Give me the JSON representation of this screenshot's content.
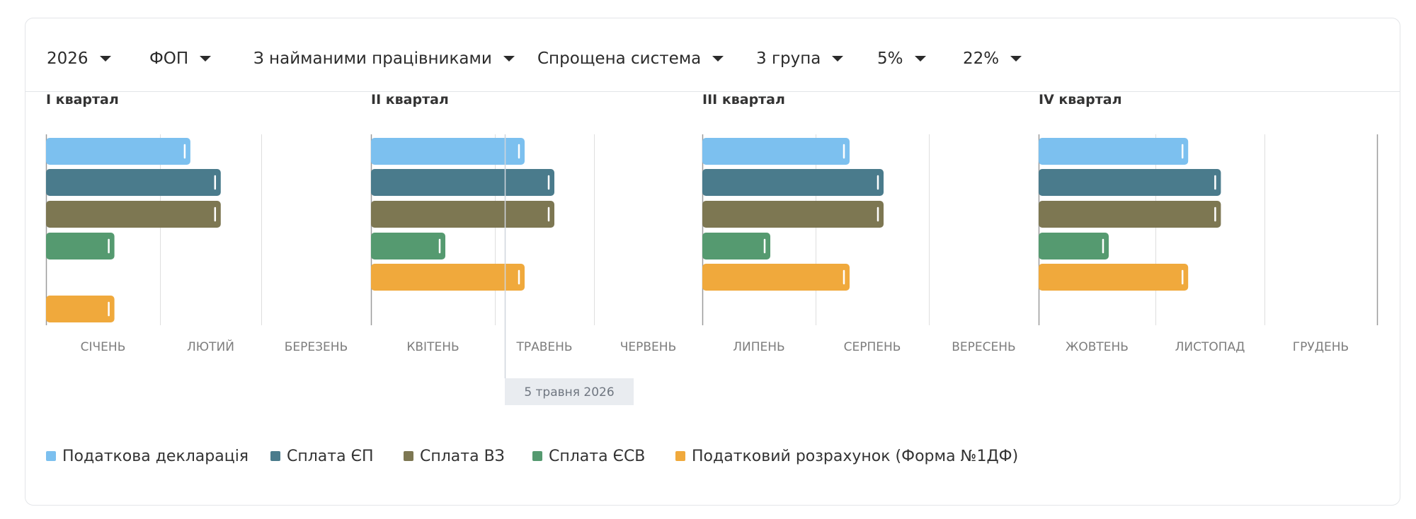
{
  "filters": {
    "year": "2026",
    "entity": "ФОП",
    "employees": "З найманими працівниками",
    "tax_system": "Спрощена система",
    "group": "3 група",
    "rate_1": "5%",
    "rate_2": "22%"
  },
  "today_label": "5 травня 2026",
  "colors": {
    "declaration": "#7cc0ef",
    "ep": "#4a7b8c",
    "vz": "#7d7752",
    "esv": "#559a70",
    "form1df": "#f0a93c"
  },
  "chart_data": {
    "type": "bar",
    "title": "",
    "quarters": [
      "I квартал",
      "II квартал",
      "III квартал",
      "IV квартал"
    ],
    "months": [
      "СІЧЕНЬ",
      "ЛЮТИЙ",
      "БЕРЕЗЕНЬ",
      "КВІТЕНЬ",
      "ТРАВЕНЬ",
      "ЧЕРВЕНЬ",
      "ЛИПЕНЬ",
      "СЕРПЕНЬ",
      "ВЕРЕСЕНЬ",
      "ЖОВТЕНЬ",
      "ЛИСТОПАД",
      "ГРУДЕНЬ"
    ],
    "today_month_index": 4.1,
    "series": [
      {
        "name": "Податкова декларація",
        "color_key": "declaration",
        "end_months": [
          1.3,
          4.3,
          7.3,
          10.3
        ]
      },
      {
        "name": "Сплата ЄП",
        "color_key": "ep",
        "end_months": [
          1.6,
          4.6,
          7.6,
          10.6
        ]
      },
      {
        "name": "Сплата ВЗ",
        "color_key": "vz",
        "end_months": [
          1.6,
          4.6,
          7.6,
          10.6
        ]
      },
      {
        "name": "Сплата ЄСВ",
        "color_key": "esv",
        "end_months": [
          0.6,
          3.6,
          6.6,
          9.6
        ]
      },
      {
        "name": "Податковий розрахунок (Форма №1ДФ)",
        "color_key": "form1df",
        "end_months": [
          0.6,
          4.3,
          7.3,
          10.3
        ]
      }
    ]
  }
}
